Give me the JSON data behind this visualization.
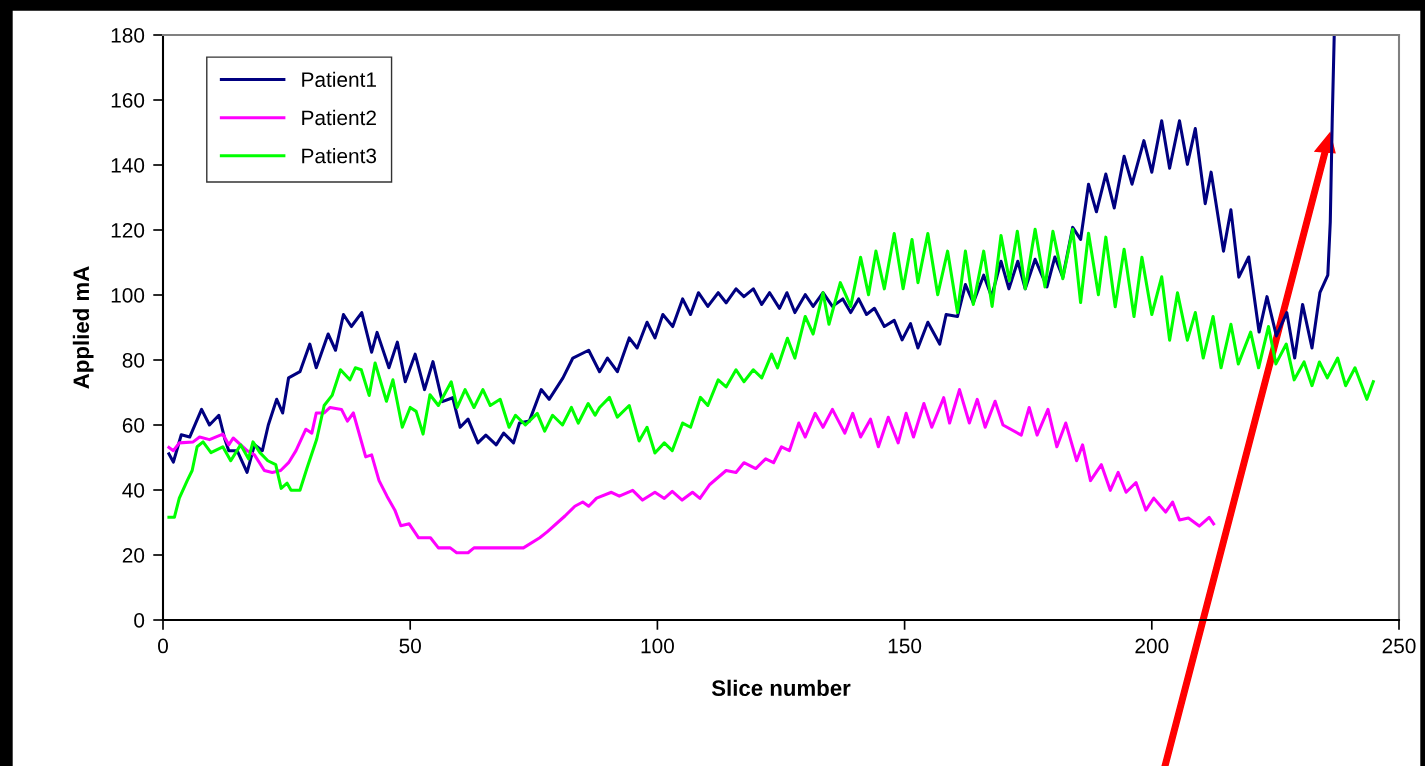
{
  "chart_data": {
    "type": "line",
    "xlabel": "Slice number",
    "ylabel": "Applied mA",
    "xlim": [
      0,
      250
    ],
    "ylim": [
      0,
      180
    ],
    "xticks": [
      0,
      50,
      100,
      150,
      200,
      250
    ],
    "yticks": [
      0,
      20,
      40,
      60,
      80,
      100,
      120,
      140,
      160,
      180
    ],
    "grid": false,
    "legend": "top left",
    "marker": "none",
    "line_style": "solid",
    "series": [
      {
        "name": "Patient1",
        "color": "#000080",
        "x": [
          1.2,
          2.1,
          3.7,
          5.4,
          7.8,
          9.4,
          11.3,
          12.5,
          13.3,
          15.0,
          17.0,
          18.5,
          20.1,
          21.3,
          23.0,
          24.2,
          25.4,
          27.7,
          29.7,
          31.0,
          33.4,
          34.9,
          36.5,
          38.1,
          40.2,
          42.2,
          43.3,
          45.7,
          47.4,
          49.0,
          51.0,
          52.9,
          54.6,
          56.5,
          58.6,
          60.1,
          61.7,
          63.7,
          65.3,
          67.4,
          68.9,
          70.9,
          72.1,
          74.1,
          76.5,
          78.1,
          80.9,
          82.9,
          86.1,
          88.3,
          89.9,
          91.9,
          94.3,
          95.9,
          97.9,
          99.5,
          101.1,
          103.1,
          105.1,
          106.7,
          108.3,
          110.2,
          112.3,
          113.9,
          115.9,
          117.5,
          119.4,
          121.1,
          122.7,
          124.7,
          126.2,
          127.8,
          129.9,
          131.5,
          133.5,
          135.4,
          137.5,
          139.1,
          140.7,
          142.3,
          143.9,
          145.9,
          147.9,
          149.5,
          151.2,
          152.7,
          154.7,
          157.1,
          158.4,
          160.7,
          162.3,
          163.9,
          166.0,
          167.6,
          169.5,
          171.1,
          172.9,
          174.4,
          176.4,
          178.8,
          180.4,
          182.0,
          184.0,
          185.6,
          187.2,
          188.8,
          190.7,
          192.4,
          194.4,
          196.0,
          198.4,
          200.0,
          202.0,
          203.6,
          205.6,
          207.2,
          208.8,
          210.8,
          212.0,
          214.5,
          216.0,
          217.6,
          219.6,
          221.7,
          223.3,
          225.2,
          227.3,
          228.9,
          230.5,
          232.4,
          234.0,
          235.6,
          236.1,
          236.5,
          236.9
        ],
        "values": [
          51.1,
          48.6,
          57.0,
          56.3,
          64.8,
          60.0,
          63.0,
          55.7,
          52.1,
          52.1,
          45.4,
          53.9,
          52.1,
          60.0,
          67.9,
          63.7,
          74.5,
          76.4,
          84.9,
          77.6,
          88.0,
          83.0,
          94.0,
          90.3,
          94.6,
          82.4,
          88.5,
          77.6,
          85.5,
          73.3,
          81.8,
          70.9,
          79.5,
          67.2,
          68.4,
          59.3,
          61.8,
          54.5,
          56.9,
          53.9,
          57.5,
          54.5,
          60.6,
          61.2,
          70.9,
          67.9,
          74.5,
          80.6,
          83.0,
          76.4,
          80.6,
          76.4,
          86.8,
          83.7,
          91.6,
          86.8,
          94.0,
          90.3,
          98.8,
          94.0,
          100.7,
          96.5,
          100.7,
          97.6,
          101.9,
          99.5,
          101.9,
          97.1,
          100.7,
          95.9,
          100.7,
          94.6,
          100.1,
          96.5,
          100.7,
          96.5,
          98.8,
          94.6,
          98.8,
          94.0,
          95.9,
          90.3,
          92.2,
          86.2,
          91.2,
          83.7,
          91.6,
          84.9,
          94.0,
          93.4,
          103.2,
          97.6,
          106.1,
          99.5,
          110.4,
          101.9,
          110.4,
          101.9,
          111.0,
          102.5,
          111.7,
          105.5,
          120.8,
          117.1,
          134.1,
          125.6,
          137.2,
          126.8,
          142.7,
          134.1,
          147.5,
          137.8,
          153.6,
          139.0,
          153.6,
          140.2,
          151.2,
          128.1,
          137.8,
          113.5,
          126.2,
          105.5,
          111.7,
          88.6,
          99.5,
          87.4,
          94.6,
          80.6,
          97.1,
          83.7,
          100.7,
          106.1,
          122.5,
          154.2,
          180
        ]
      },
      {
        "name": "Patient2",
        "color": "#ff00ff",
        "x": [
          1.2,
          2.1,
          3.3,
          6.1,
          7.4,
          9.4,
          12.1,
          13.3,
          14.2,
          17.0,
          18.5,
          20.5,
          22.1,
          23.8,
          25.4,
          26.9,
          28.9,
          30.1,
          31.0,
          32.6,
          33.8,
          36.1,
          37.3,
          38.5,
          41.0,
          42.2,
          43.7,
          45.3,
          46.9,
          48.1,
          49.8,
          51.7,
          54.1,
          55.7,
          58.1,
          59.4,
          61.7,
          62.9,
          72.9,
          76.2,
          77.7,
          81.3,
          83.3,
          84.9,
          86.1,
          87.7,
          90.7,
          92.3,
          95.0,
          97.0,
          99.5,
          101.4,
          103.0,
          105.0,
          107.1,
          108.6,
          110.6,
          113.9,
          115.9,
          117.5,
          119.9,
          121.9,
          123.5,
          125.1,
          126.7,
          128.6,
          129.9,
          131.9,
          133.5,
          135.4,
          137.9,
          139.5,
          141.1,
          143.1,
          144.7,
          146.7,
          148.7,
          150.3,
          151.8,
          153.9,
          155.5,
          157.9,
          159.1,
          161.1,
          163.1,
          164.7,
          166.3,
          168.3,
          169.9,
          173.6,
          175.2,
          176.8,
          179.0,
          180.8,
          182.6,
          184.8,
          186.0,
          187.6,
          189.8,
          191.6,
          193.2,
          194.8,
          196.8,
          198.8,
          200.4,
          202.8,
          204.2,
          205.6,
          207.4,
          209.6,
          211.6,
          212.5
        ],
        "values": [
          53.1,
          52.1,
          54.5,
          54.8,
          56.3,
          55.5,
          57.2,
          53.9,
          56.0,
          52.1,
          50.8,
          46.0,
          45.4,
          46.0,
          48.4,
          52.1,
          58.7,
          57.5,
          63.7,
          63.7,
          65.4,
          64.8,
          61.2,
          63.7,
          50.2,
          50.8,
          42.9,
          38.1,
          33.8,
          29.0,
          29.6,
          25.3,
          25.3,
          22.2,
          22.2,
          20.7,
          20.7,
          22.2,
          22.2,
          25.3,
          27.1,
          32.0,
          35.0,
          36.3,
          35.0,
          37.5,
          39.3,
          38.1,
          39.9,
          36.9,
          39.3,
          37.4,
          39.6,
          36.9,
          39.3,
          37.4,
          41.7,
          46.0,
          45.4,
          48.4,
          46.6,
          49.6,
          48.4,
          53.3,
          52.1,
          60.6,
          56.3,
          63.6,
          59.3,
          64.8,
          57.5,
          63.6,
          56.3,
          61.8,
          53.3,
          62.4,
          54.5,
          63.6,
          56.3,
          66.6,
          59.3,
          68.4,
          60.6,
          70.9,
          60.6,
          67.9,
          59.3,
          67.3,
          60.0,
          56.9,
          65.4,
          56.9,
          64.8,
          53.3,
          60.6,
          49.0,
          53.9,
          42.9,
          47.8,
          39.9,
          45.4,
          39.3,
          42.3,
          33.8,
          37.5,
          33.2,
          36.3,
          30.8,
          31.4,
          28.9,
          31.6,
          29.6
        ]
      },
      {
        "name": "Patient3",
        "color": "#00ff00",
        "x": [
          1.2,
          2.3,
          3.3,
          4.9,
          5.9,
          6.9,
          8.1,
          9.7,
          12.1,
          13.7,
          15.7,
          17.3,
          18.2,
          19.6,
          21.2,
          22.8,
          23.9,
          25.1,
          25.9,
          27.7,
          29.1,
          31.1,
          32.6,
          34.2,
          35.9,
          37.8,
          38.9,
          40.1,
          41.7,
          42.9,
          45.2,
          46.5,
          48.4,
          50.0,
          51.2,
          52.6,
          54.0,
          55.7,
          58.3,
          59.5,
          61.1,
          62.9,
          64.7,
          66.2,
          68.2,
          70.0,
          71.3,
          73.3,
          75.7,
          77.2,
          78.8,
          80.8,
          82.6,
          84.0,
          86.0,
          87.4,
          88.3,
          90.3,
          91.9,
          94.3,
          96.3,
          97.9,
          99.5,
          101.4,
          103.0,
          105.1,
          106.7,
          108.7,
          110.2,
          112.3,
          113.9,
          115.9,
          117.5,
          119.4,
          121.1,
          123.1,
          124.3,
          126.3,
          127.8,
          129.9,
          131.5,
          133.5,
          134.7,
          137.0,
          139.1,
          141.1,
          142.7,
          144.2,
          145.9,
          147.9,
          149.7,
          151.5,
          152.7,
          154.7,
          156.7,
          158.7,
          160.7,
          162.3,
          163.9,
          166.0,
          167.7,
          169.5,
          171.2,
          172.8,
          174.4,
          176.4,
          178.4,
          180.0,
          182.0,
          184.0,
          185.6,
          187.2,
          189.2,
          190.7,
          192.6,
          194.4,
          196.4,
          198.0,
          200.0,
          202.0,
          203.6,
          205.2,
          207.2,
          208.8,
          210.4,
          212.4,
          214.0,
          216.0,
          217.5,
          220.0,
          221.6,
          223.6,
          225.1,
          227.2,
          228.8,
          230.8,
          232.4,
          233.9,
          235.5,
          237.6,
          239.2,
          241.1,
          243.5,
          244.8
        ],
        "values": [
          31.6,
          31.6,
          37.5,
          42.9,
          46.0,
          53.3,
          54.8,
          51.5,
          53.3,
          49.0,
          53.9,
          49.6,
          54.8,
          51.5,
          49.0,
          47.8,
          40.5,
          42.1,
          39.9,
          39.9,
          46.6,
          55.7,
          66.0,
          69.1,
          77.0,
          73.9,
          77.6,
          77.0,
          69.1,
          79.1,
          67.3,
          73.9,
          59.3,
          65.4,
          64.2,
          57.2,
          69.3,
          66.0,
          73.3,
          65.4,
          70.9,
          65.4,
          70.9,
          66.0,
          67.9,
          59.3,
          63.0,
          60.0,
          63.6,
          58.1,
          63.0,
          60.0,
          65.4,
          60.6,
          66.6,
          63.0,
          65.4,
          68.5,
          62.4,
          66.0,
          55.1,
          59.3,
          51.4,
          54.5,
          52.1,
          60.6,
          59.3,
          68.5,
          66.0,
          73.9,
          71.7,
          77.0,
          73.3,
          77.0,
          74.5,
          81.8,
          77.6,
          86.7,
          80.6,
          93.4,
          88.0,
          100.7,
          91.0,
          103.8,
          96.5,
          111.6,
          100.1,
          113.5,
          101.9,
          118.9,
          101.9,
          117.1,
          103.8,
          118.9,
          100.1,
          113.5,
          94.6,
          113.5,
          97.1,
          113.5,
          96.5,
          118.3,
          104.4,
          119.6,
          101.9,
          120.2,
          102.5,
          119.6,
          105.0,
          120.2,
          97.7,
          119.0,
          100.1,
          117.8,
          96.4,
          114.1,
          93.4,
          111.6,
          94.0,
          105.6,
          86.1,
          100.7,
          86.1,
          94.6,
          80.6,
          93.4,
          77.6,
          91.0,
          78.8,
          88.6,
          77.6,
          90.3,
          78.8,
          84.9,
          73.9,
          79.4,
          72.1,
          79.4,
          74.5,
          80.6,
          72.1,
          77.6,
          67.9,
          73.3
        ]
      }
    ]
  }
}
